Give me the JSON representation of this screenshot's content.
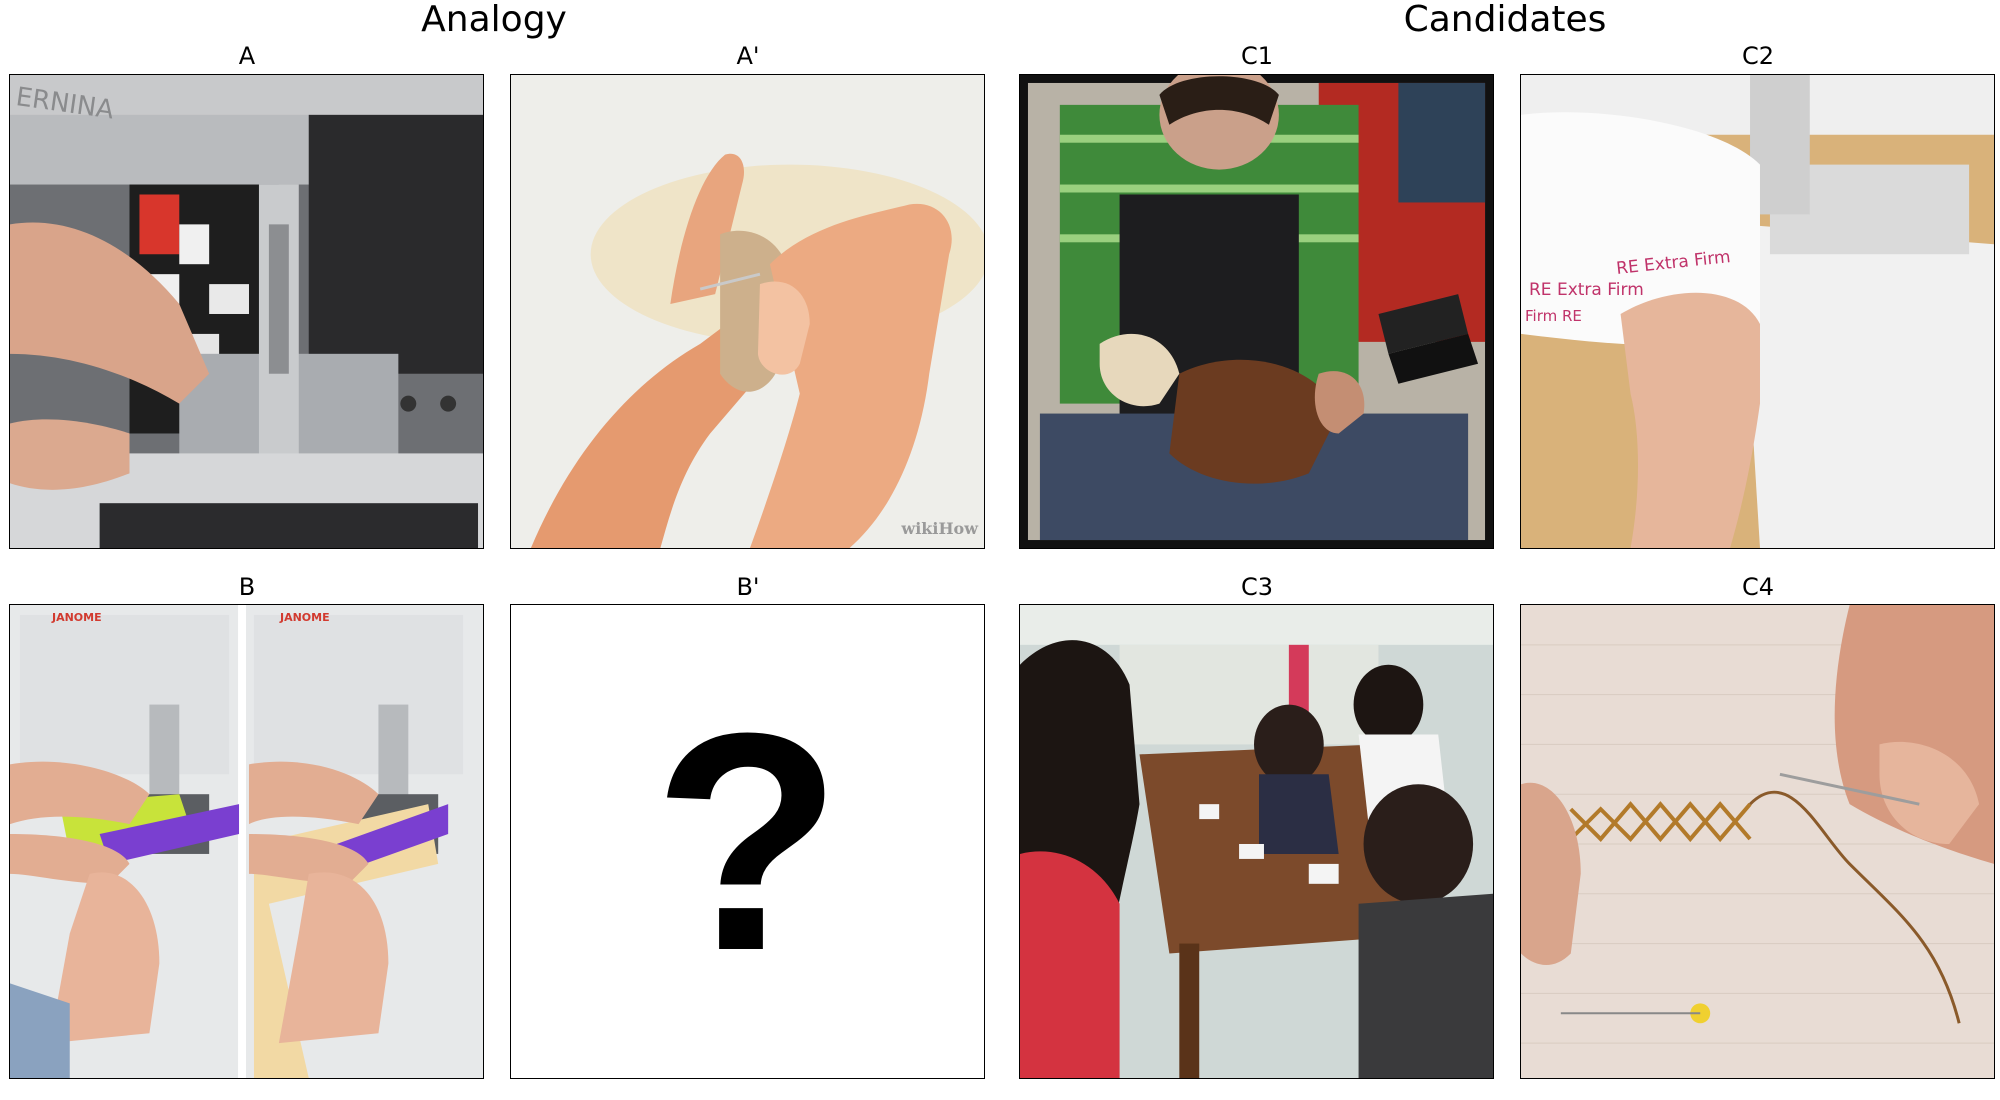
{
  "headings": {
    "analogy": "Analogy",
    "candidates": "Candidates"
  },
  "panels": {
    "A": {
      "label": "A"
    },
    "A_prime": {
      "label": "A'",
      "watermark": "wikiHow"
    },
    "B": {
      "label": "B",
      "brand_left": "JANOME",
      "brand_right": "JANOME"
    },
    "B_prime": {
      "label": "B'",
      "placeholder": "?"
    },
    "C1": {
      "label": "C1"
    },
    "C2": {
      "label": "C2",
      "print_1": "RE  Extra Firm",
      "print_2": "RE Extra Firm",
      "print_3": "Firm    RE",
      "print_4": "Firm"
    },
    "C3": {
      "label": "C3"
    },
    "C4": {
      "label": "C4"
    }
  }
}
